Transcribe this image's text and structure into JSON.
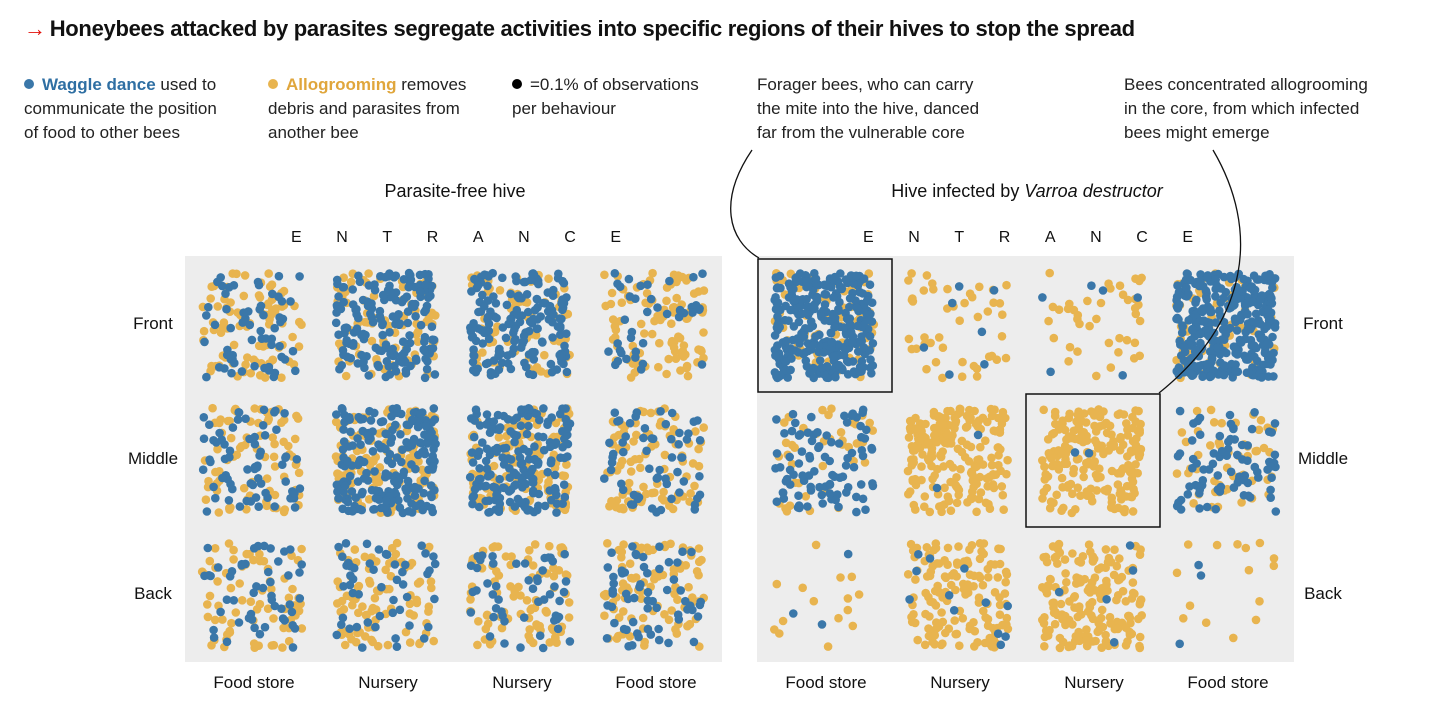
{
  "title": "Honeybees attacked by parasites segregate activities into specific regions of their hives to stop the spread",
  "legend": {
    "waggle_label": "Waggle dance",
    "waggle_text_1": " used to",
    "waggle_text_2": "communicate the position",
    "waggle_text_3": "of food to other bees",
    "allo_label": "Allogrooming",
    "allo_text_1": " removes",
    "allo_text_2": "debris and parasites from",
    "allo_text_3": "another bee",
    "unit_text_1": "=0.1% of observations",
    "unit_text_2": "per behaviour"
  },
  "annotations": {
    "forager": [
      "Forager bees, who can carry",
      "the mite into the hive, danced",
      "far from the vulnerable core"
    ],
    "core": [
      "Bees concentrated allogrooming",
      "in the core, from which infected",
      "bees might emerge"
    ]
  },
  "colors": {
    "waggle": "#3a77a9",
    "allogrooming": "#e8b44f",
    "panel": "#ededed"
  },
  "chart_data": {
    "type": "scatter",
    "unit": "one dot = 0.1% of observations per behaviour",
    "series": [
      "Waggle dance",
      "Allogrooming"
    ],
    "rows": [
      "Front",
      "Middle",
      "Back"
    ],
    "columns": [
      "Food store",
      "Nursery",
      "Nursery",
      "Food store"
    ],
    "entrance": [
      "E",
      "N",
      "T",
      "R",
      "A",
      "N",
      "C",
      "E"
    ],
    "panels": [
      {
        "title": "Parasite-free hive",
        "title_italic": "",
        "counts": [
          [
            [
              60,
              90
            ],
            [
              170,
              80
            ],
            [
              170,
              70
            ],
            [
              40,
              100
            ]
          ],
          [
            [
              70,
              80
            ],
            [
              200,
              120
            ],
            [
              180,
              120
            ],
            [
              60,
              90
            ]
          ],
          [
            [
              50,
              70
            ],
            [
              50,
              90
            ],
            [
              50,
              90
            ],
            [
              60,
              90
            ]
          ]
        ],
        "highlight": []
      },
      {
        "title": "Hive infected by ",
        "title_italic": "Varroa destructor",
        "counts": [
          [
            [
              300,
              80
            ],
            [
              7,
              45
            ],
            [
              6,
              40
            ],
            [
              320,
              60
            ]
          ],
          [
            [
              90,
              40
            ],
            [
              2,
              200
            ],
            [
              2,
              200
            ],
            [
              80,
              50
            ]
          ],
          [
            [
              3,
              15
            ],
            [
              12,
              150
            ],
            [
              5,
              180
            ],
            [
              3,
              15
            ]
          ]
        ],
        "highlight": [
          [
            0,
            0
          ],
          [
            1,
            2
          ]
        ]
      }
    ]
  }
}
